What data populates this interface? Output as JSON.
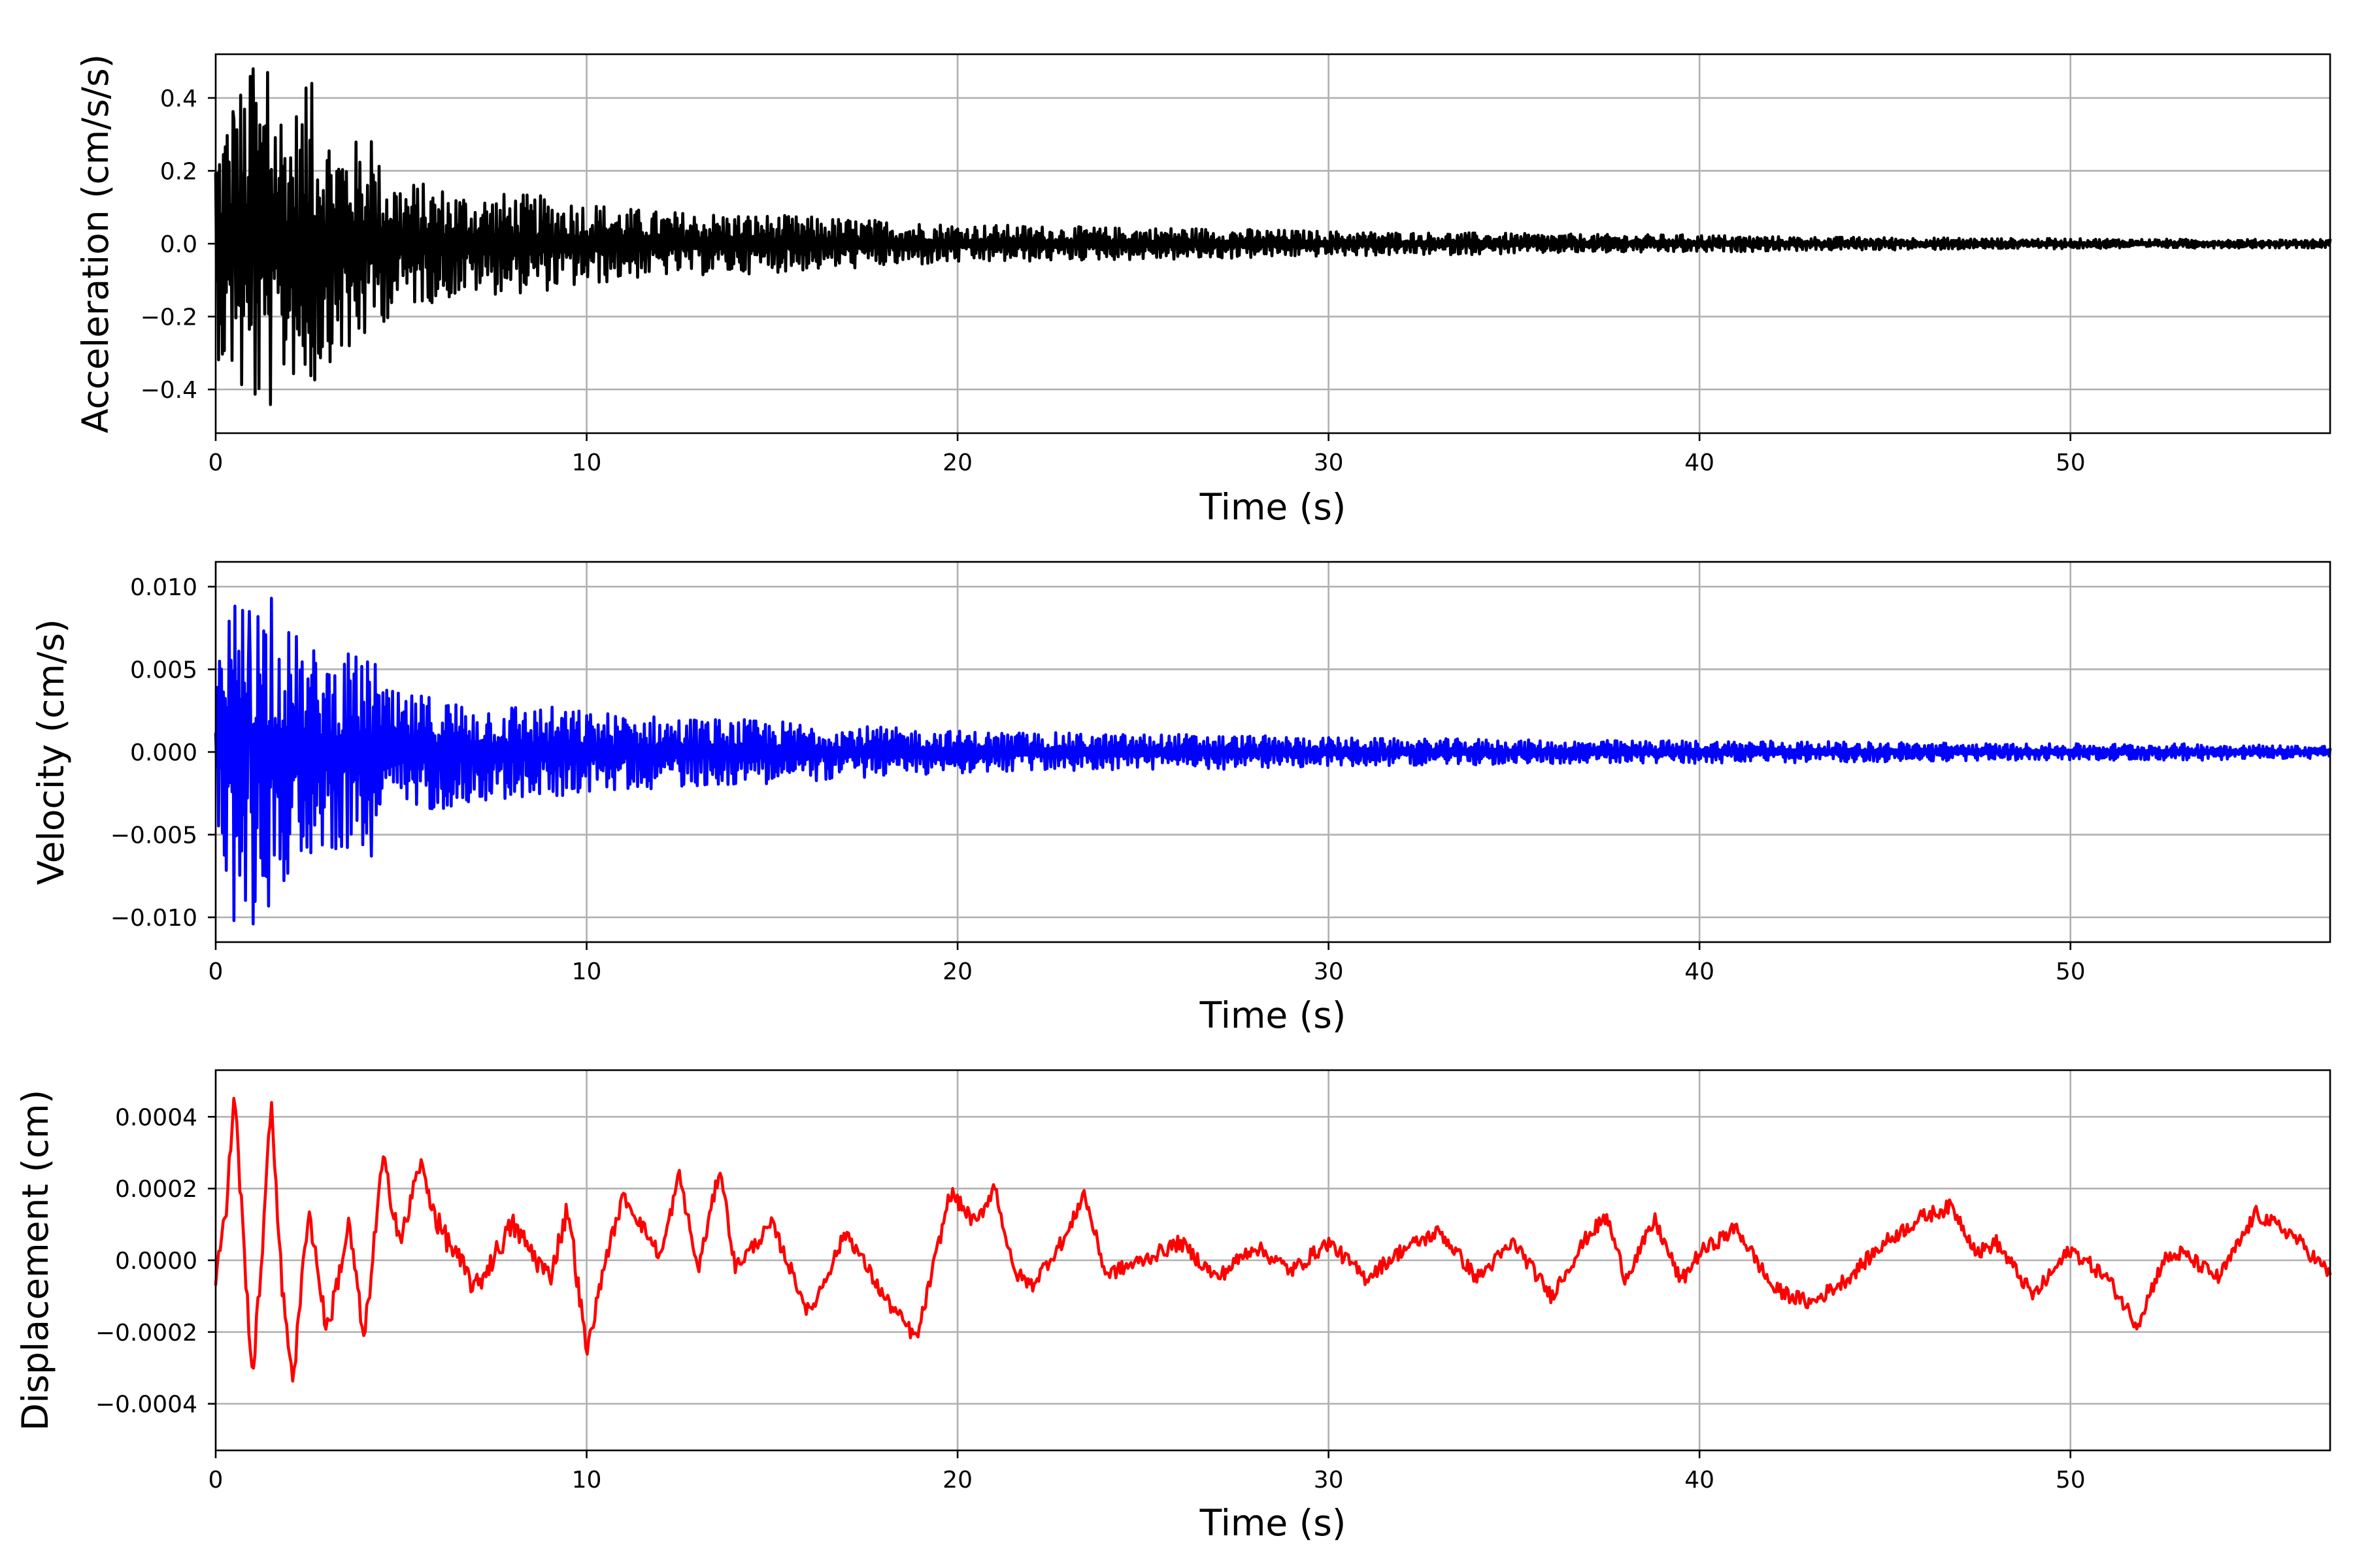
{
  "chart_data": [
    {
      "type": "line",
      "xlabel": "Time (s)",
      "ylabel": "Acceleration (cm/s/s)",
      "xlim": [
        0,
        57
      ],
      "ylim": [
        -0.52,
        0.52
      ],
      "xticks": [
        0,
        10,
        20,
        30,
        40,
        50
      ],
      "xtick_labels": [
        "0",
        "10",
        "20",
        "30",
        "40",
        "50"
      ],
      "yticks": [
        -0.4,
        -0.2,
        0.0,
        0.2,
        0.4
      ],
      "ytick_labels": [
        "−0.4",
        "−0.2",
        "0.0",
        "0.2",
        "0.4"
      ],
      "grid": true,
      "series": [
        {
          "color": "#000000",
          "x": [
            0,
            0.5,
            1.0,
            1.5,
            2.0,
            2.5,
            3.0,
            3.5,
            4.0,
            4.5,
            5.0,
            6.0,
            7.0,
            8.0,
            9.0,
            10.0,
            11.0,
            12.0,
            14.0,
            16.0,
            18.0,
            20.0,
            22.0,
            24.0,
            26.0,
            28.0,
            30.0,
            32.0,
            34.0,
            36.0,
            38.0,
            40.0,
            42.0,
            44.0,
            46.0,
            48.0,
            50.0,
            52.0,
            54.0,
            56.0,
            57.0
          ],
          "envelope": [
            0.3,
            0.43,
            0.48,
            0.47,
            0.36,
            0.44,
            0.33,
            0.3,
            0.28,
            0.22,
            0.18,
            0.16,
            0.14,
            0.14,
            0.13,
            0.12,
            0.1,
            0.09,
            0.085,
            0.075,
            0.065,
            0.055,
            0.05,
            0.045,
            0.045,
            0.04,
            0.035,
            0.032,
            0.03,
            0.027,
            0.025,
            0.025,
            0.02,
            0.018,
            0.017,
            0.015,
            0.014,
            0.013,
            0.012,
            0.012,
            0.012
          ],
          "peaks": [
            [
              0.5,
              -0.43
            ],
            [
              1.0,
              0.48
            ],
            [
              1.4,
              0.47
            ],
            [
              2.6,
              0.44
            ],
            [
              0.5,
              0.34
            ],
            [
              3.6,
              -0.28
            ],
            [
              4.2,
              0.28
            ]
          ]
        }
      ]
    },
    {
      "type": "line",
      "xlabel": "Time (s)",
      "ylabel": "Velocity (cm/s)",
      "xlim": [
        0,
        57
      ],
      "ylim": [
        -0.0115,
        0.0115
      ],
      "xticks": [
        0,
        10,
        20,
        30,
        40,
        50
      ],
      "xtick_labels": [
        "0",
        "10",
        "20",
        "30",
        "40",
        "50"
      ],
      "yticks": [
        -0.01,
        -0.005,
        0.0,
        0.005,
        0.01
      ],
      "ytick_labels": [
        "−0.010",
        "−0.005",
        "0.000",
        "0.005",
        "0.010"
      ],
      "grid": true,
      "series": [
        {
          "color": "#0000ff",
          "x": [
            0,
            0.5,
            1.0,
            1.5,
            2.0,
            2.5,
            3.0,
            3.5,
            4.0,
            4.5,
            5.0,
            6.0,
            7.0,
            8.0,
            9.0,
            10.0,
            12.0,
            14.0,
            16.0,
            18.0,
            20.0,
            22.0,
            24.0,
            26.0,
            28.0,
            30.0,
            32.0,
            34.0,
            36.0,
            38.0,
            40.0,
            42.0,
            44.0,
            46.0,
            48.0,
            50.0,
            52.0,
            54.0,
            56.0,
            57.0
          ],
          "envelope": [
            0.005,
            0.0095,
            0.0103,
            0.0093,
            0.0075,
            0.0065,
            0.006,
            0.006,
            0.006,
            0.004,
            0.0035,
            0.0035,
            0.003,
            0.003,
            0.0028,
            0.0025,
            0.0022,
            0.002,
            0.0018,
            0.0015,
            0.0013,
            0.0012,
            0.0011,
            0.0011,
            0.001,
            0.0009,
            0.0008,
            0.0008,
            0.0007,
            0.0007,
            0.0007,
            0.0007,
            0.0006,
            0.0006,
            0.0005,
            0.0005,
            0.0005,
            0.0005,
            0.0004,
            0.0004
          ],
          "peaks": [
            [
              0.5,
              -0.0102
            ],
            [
              1.0,
              -0.0104
            ],
            [
              1.5,
              0.0093
            ],
            [
              4.2,
              -0.0063
            ],
            [
              4.3,
              0.0053
            ],
            [
              0.9,
              0.0085
            ]
          ]
        }
      ]
    },
    {
      "type": "line",
      "xlabel": "Time (s)",
      "ylabel": "Displacement (cm)",
      "xlim": [
        0,
        57
      ],
      "ylim": [
        -0.00053,
        0.00053
      ],
      "xticks": [
        0,
        10,
        20,
        30,
        40,
        50
      ],
      "xtick_labels": [
        "0",
        "10",
        "20",
        "30",
        "40",
        "50"
      ],
      "yticks": [
        -0.0004,
        -0.0002,
        0.0,
        0.0002,
        0.0004
      ],
      "ytick_labels": [
        "−0.0004",
        "−0.0002",
        "0.0000",
        "0.0002",
        "0.0004"
      ],
      "grid": true,
      "series": [
        {
          "color": "#ff0000",
          "x": [
            0,
            0.3,
            0.5,
            0.8,
            1.0,
            1.3,
            1.5,
            1.8,
            2.1,
            2.5,
            3.0,
            3.6,
            4.0,
            4.5,
            5.0,
            5.5,
            6.0,
            7.0,
            8.0,
            9.0,
            9.5,
            10.0,
            10.5,
            11.0,
            12.0,
            12.5,
            13.0,
            13.6,
            14.0,
            15.0,
            16.0,
            17.0,
            18.0,
            18.9,
            19.5,
            19.8,
            20.5,
            21.0,
            21.5,
            22.0,
            23.0,
            23.4,
            24.0,
            25.0,
            26.0,
            27.0,
            28.0,
            29.0,
            30.0,
            31.0,
            32.0,
            33.0,
            34.0,
            35.0,
            36.0,
            37.0,
            37.5,
            38.0,
            38.8,
            39.5,
            40.0,
            41.0,
            42.0,
            43.0,
            44.0,
            45.0,
            46.0,
            46.8,
            47.5,
            48.0,
            49.0,
            50.0,
            51.0,
            51.8,
            52.5,
            53.0,
            54.0,
            55.0,
            56.0,
            57.0
          ],
          "y": [
            -4e-05,
            0.00015,
            0.00048,
            -3e-05,
            -0.00033,
            0.0001,
            0.00045,
            -0.0001,
            -0.00033,
            0.00015,
            -0.0002,
            0.0001,
            -0.00023,
            0.00028,
            5e-05,
            0.00027,
            0.0001,
            -8e-05,
            0.0001,
            -5e-05,
            0.00015,
            -0.00026,
            0.0,
            0.00018,
            1e-05,
            0.00024,
            -3e-05,
            0.00026,
            -2e-05,
            0.0001,
            -0.00015,
            8e-05,
            -0.0001,
            -0.00022,
            5e-05,
            0.00019,
            0.0001,
            0.00021,
            -3e-05,
            -7e-05,
            8e-05,
            0.00019,
            -4e-05,
            0.0,
            5e-05,
            -5e-05,
            4e-05,
            -3e-05,
            5e-05,
            -5e-05,
            3e-05,
            8e-05,
            -5e-05,
            5e-05,
            -0.0001,
            7e-05,
            0.00012,
            -5e-05,
            0.00011,
            -6e-05,
            2e-05,
            9e-05,
            -8e-05,
            -0.00012,
            -5e-05,
            5e-05,
            0.00012,
            0.00015,
            2e-05,
            5e-05,
            -0.0001,
            3e-05,
            -5e-05,
            -0.00018,
            0.0,
            2e-05,
            -5e-05,
            0.00013,
            7e-05,
            -4e-05
          ]
        }
      ]
    }
  ]
}
